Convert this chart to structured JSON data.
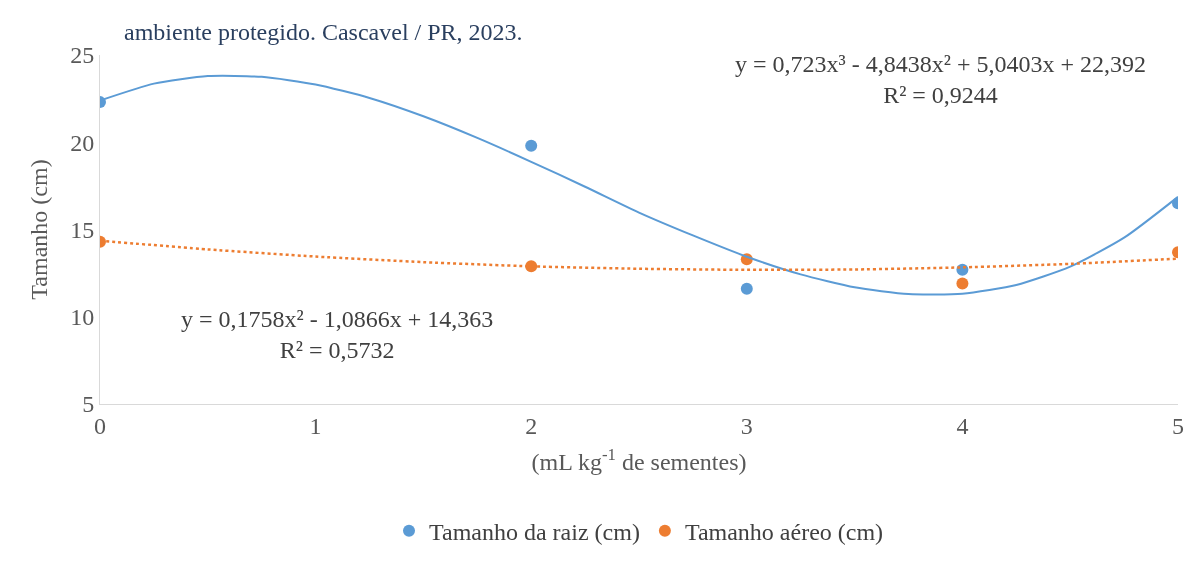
{
  "chart_data": {
    "type": "scatter",
    "title": "ambiente protegido. Cascavel / PR, 2023.",
    "xlabel": "(mL kg$^{-1}$ de sementes)",
    "ylabel": "Tamanho (cm)",
    "x": [
      0,
      2,
      3,
      4,
      5
    ],
    "series": [
      {
        "name": "Tamanho da raiz (cm)",
        "color": "#5b9bd5",
        "values": [
          22.3,
          19.8,
          11.6,
          12.7,
          16.5
        ],
        "marker": "circle"
      },
      {
        "name": "Tamanho aéreo (cm)",
        "color": "#ed7d31",
        "values": [
          14.3,
          12.9,
          13.3,
          11.9,
          13.7
        ],
        "marker": "circle"
      },
      {
        "type": "line",
        "color": "#5b9bd5",
        "line_style": "solid",
        "marker": "none",
        "x": [
          0,
          0.25,
          0.5,
          0.75,
          1,
          1.25,
          1.5,
          1.75,
          2,
          2.25,
          2.5,
          2.75,
          3,
          3.25,
          3.5,
          3.75,
          4,
          4.25,
          4.5,
          4.75,
          5
        ],
        "values": [
          22.39,
          23.36,
          23.79,
          23.75,
          23.31,
          22.54,
          21.49,
          20.25,
          18.88,
          17.45,
          15.97,
          14.66,
          13.44,
          12.43,
          11.69,
          11.3,
          11.32,
          11.82,
          12.87,
          14.53,
          16.87
        ]
      },
      {
        "type": "line",
        "color": "#ed7d31",
        "line_style": "dotted",
        "marker": "none",
        "x": [
          0,
          0.5,
          1,
          1.5,
          2,
          2.5,
          3,
          3.5,
          4,
          4.5,
          5
        ],
        "values": [
          14.36,
          13.86,
          13.45,
          13.13,
          12.89,
          12.75,
          12.69,
          12.71,
          12.83,
          13.03,
          13.33
        ]
      }
    ],
    "annotations": [
      "y = 0,723x³ - 4,8438x² + 5,0403x + 22,392\nR² = 0,9244",
      "y = 0,1758x² - 1,0866x + 14,363\nR² = 0,5732"
    ],
    "xlim": [
      0,
      5
    ],
    "xticks": [
      0,
      1,
      2,
      3,
      4,
      5
    ],
    "ylim": [
      5,
      25
    ],
    "yticks": [
      5,
      10,
      15,
      20,
      25
    ],
    "legend": "bottom"
  }
}
